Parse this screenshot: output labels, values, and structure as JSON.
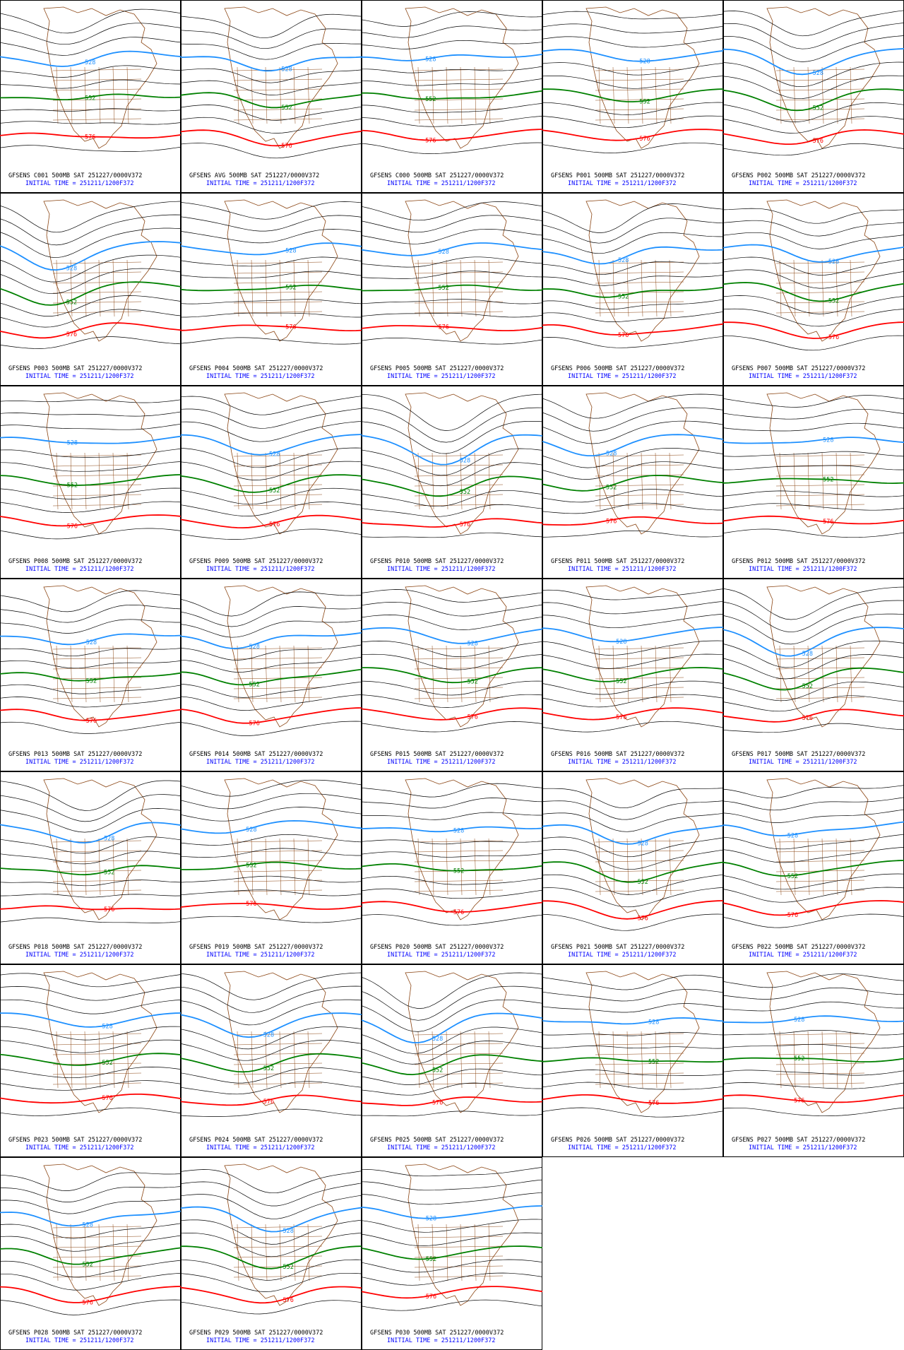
{
  "panels": [
    {
      "title": "GFSENS C001 500MB SAT 251227/0000V372",
      "init": "INITIAL TIME = 251211/1200F372",
      "labels": [
        "528",
        "552",
        "576"
      ]
    },
    {
      "title": "GFSENS AVG 500MB SAT 251227/0000V372",
      "init": "INITIAL TIME = 251211/1200F372",
      "labels": [
        "528",
        "552",
        "576"
      ]
    },
    {
      "title": "GFSENS C000 500MB SAT 251227/0000V372",
      "init": "INITIAL TIME = 251211/1200F372",
      "labels": [
        "528",
        "552",
        "576"
      ]
    },
    {
      "title": "GFSENS P001 500MB SAT 251227/0000V372",
      "init": "INITIAL TIME = 251211/1200F372",
      "labels": [
        "528",
        "552",
        "576"
      ]
    },
    {
      "title": "GFSENS P002 500MB SAT 251227/0000V372",
      "init": "INITIAL TIME = 251211/1200F372",
      "labels": [
        "528",
        "552",
        "576"
      ]
    },
    {
      "title": "GFSENS P003 500MB SAT 251227/0000V372",
      "init": "INITIAL TIME = 251211/1200F372",
      "labels": [
        "528",
        "552",
        "576"
      ]
    },
    {
      "title": "GFSENS P004 500MB SAT 251227/0000V372",
      "init": "INITIAL TIME = 251211/1200F372",
      "labels": [
        "528",
        "552",
        "576"
      ]
    },
    {
      "title": "GFSENS P005 500MB SAT 251227/0000V372",
      "init": "INITIAL TIME = 251211/1200F372",
      "labels": [
        "528",
        "552",
        "576"
      ]
    },
    {
      "title": "GFSENS P006 500MB SAT 251227/0000V372",
      "init": "INITIAL TIME = 251211/1200F372",
      "labels": [
        "528",
        "552",
        "576"
      ]
    },
    {
      "title": "GFSENS P007 500MB SAT 251227/0000V372",
      "init": "INITIAL TIME = 251211/1200F372",
      "labels": [
        "528",
        "552",
        "576"
      ]
    },
    {
      "title": "GFSENS P008 500MB SAT 251227/0000V372",
      "init": "INITIAL TIME = 251211/1200F372",
      "labels": [
        "528",
        "552",
        "576"
      ]
    },
    {
      "title": "GFSENS P009 500MB SAT 251227/0000V372",
      "init": "INITIAL TIME = 251211/1200F372",
      "labels": [
        "528",
        "552",
        "576"
      ]
    },
    {
      "title": "GFSENS P010 500MB SAT 251227/0000V372",
      "init": "INITIAL TIME = 251211/1200F372",
      "labels": [
        "528",
        "552",
        "576"
      ]
    },
    {
      "title": "GFSENS P011 500MB SAT 251227/0000V372",
      "init": "INITIAL TIME = 251211/1200F372",
      "labels": [
        "528",
        "552",
        "576"
      ]
    },
    {
      "title": "GFSENS P012 500MB SAT 251227/0000V372",
      "init": "INITIAL TIME = 251211/1200F372",
      "labels": [
        "528",
        "552",
        "576"
      ]
    },
    {
      "title": "GFSENS P013 500MB SAT 251227/0000V372",
      "init": "INITIAL TIME = 251211/1200F372",
      "labels": [
        "528",
        "552",
        "576"
      ]
    },
    {
      "title": "GFSENS P014 500MB SAT 251227/0000V372",
      "init": "INITIAL TIME = 251211/1200F372",
      "labels": [
        "528",
        "552",
        "576"
      ]
    },
    {
      "title": "GFSENS P015 500MB SAT 251227/0000V372",
      "init": "INITIAL TIME = 251211/1200F372",
      "labels": [
        "528",
        "552",
        "576"
      ]
    },
    {
      "title": "GFSENS P016 500MB SAT 251227/0000V372",
      "init": "INITIAL TIME = 251211/1200F372",
      "labels": [
        "528",
        "552",
        "576"
      ]
    },
    {
      "title": "GFSENS P017 500MB SAT 251227/0000V372",
      "init": "INITIAL TIME = 251211/1200F372",
      "labels": [
        "528",
        "552",
        "576"
      ]
    },
    {
      "title": "GFSENS P018 500MB SAT 251227/0000V372",
      "init": "INITIAL TIME = 251211/1200F372",
      "labels": [
        "528",
        "552",
        "576"
      ]
    },
    {
      "title": "GFSENS P019 500MB SAT 251227/0000V372",
      "init": "INITIAL TIME = 251211/1200F372",
      "labels": [
        "528",
        "552",
        "576"
      ]
    },
    {
      "title": "GFSENS P020 500MB SAT 251227/0000V372",
      "init": "INITIAL TIME = 251211/1200F372",
      "labels": [
        "528",
        "552",
        "576"
      ]
    },
    {
      "title": "GFSENS P021 500MB SAT 251227/0000V372",
      "init": "INITIAL TIME = 251211/1200F372",
      "labels": [
        "528",
        "552",
        "576"
      ]
    },
    {
      "title": "GFSENS P022 500MB SAT 251227/0000V372",
      "init": "INITIAL TIME = 251211/1200F372",
      "labels": [
        "528",
        "552",
        "576"
      ]
    },
    {
      "title": "GFSENS P023 500MB SAT 251227/0000V372",
      "init": "INITIAL TIME = 251211/1200F372",
      "labels": [
        "528",
        "552",
        "576"
      ]
    },
    {
      "title": "GFSENS P024 500MB SAT 251227/0000V372",
      "init": "INITIAL TIME = 251211/1200F372",
      "labels": [
        "528",
        "552",
        "576"
      ]
    },
    {
      "title": "GFSENS P025 500MB SAT 251227/0000V372",
      "init": "INITIAL TIME = 251211/1200F372",
      "labels": [
        "528",
        "552",
        "576"
      ]
    },
    {
      "title": "GFSENS P026 500MB SAT 251227/0000V372",
      "init": "INITIAL TIME = 251211/1200F372",
      "labels": [
        "528",
        "552",
        "576"
      ]
    },
    {
      "title": "GFSENS P027 500MB SAT 251227/0000V372",
      "init": "INITIAL TIME = 251211/1200F372",
      "labels": [
        "528",
        "552",
        "576"
      ]
    },
    {
      "title": "GFSENS P028 500MB SAT 251227/0000V372",
      "init": "INITIAL TIME = 251211/1200F372",
      "labels": [
        "528",
        "552",
        "576"
      ]
    },
    {
      "title": "GFSENS P029 500MB SAT 251227/0000V372",
      "init": "INITIAL TIME = 251211/1200F372",
      "labels": [
        "528",
        "552",
        "576"
      ]
    },
    {
      "title": "GFSENS P030 500MB SAT 251227/0000V372",
      "init": "INITIAL TIME = 251211/1200F372",
      "labels": [
        "528",
        "552",
        "576"
      ]
    }
  ]
}
